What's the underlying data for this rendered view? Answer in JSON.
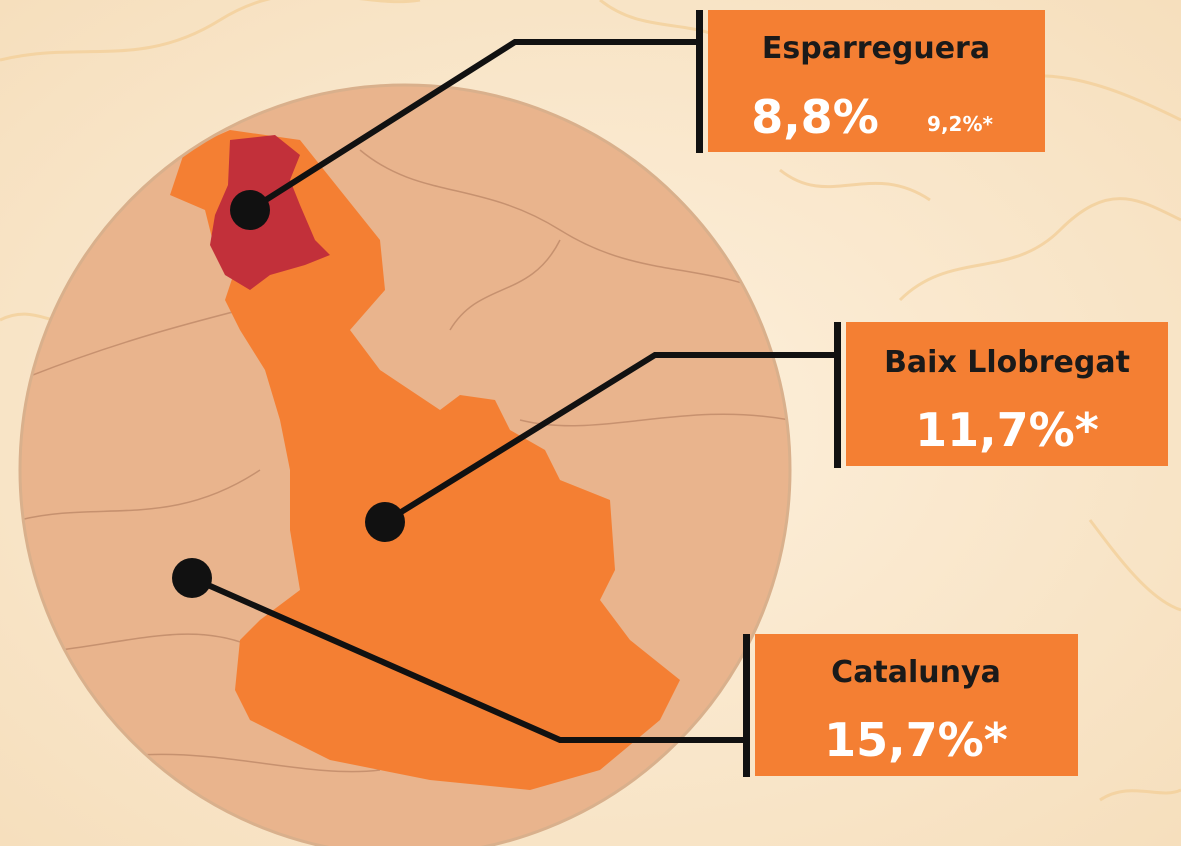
{
  "callouts": [
    {
      "name": "Esparreguera",
      "value": "8,8%",
      "secondary": "9,2%*"
    },
    {
      "name": "Baix Llobregat",
      "value": "11,7%*"
    },
    {
      "name": "Catalunya",
      "value": "15,7%*"
    }
  ]
}
